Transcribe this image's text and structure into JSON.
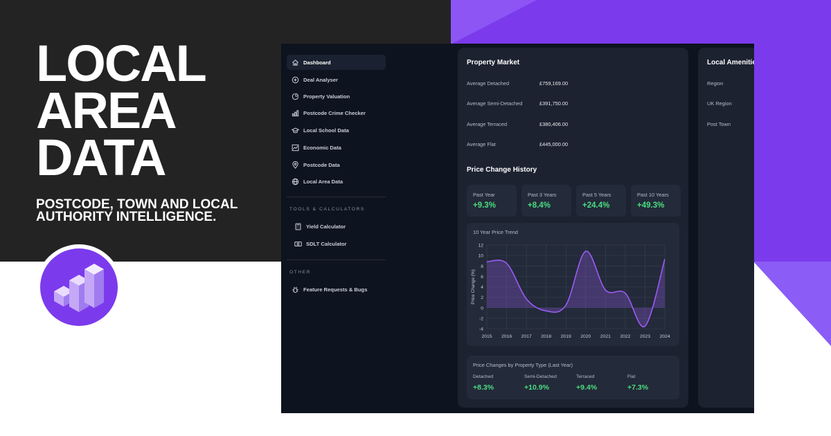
{
  "hero": {
    "title_lines": [
      "LOCAL",
      "AREA",
      "DATA"
    ],
    "subtitle_line1": "POSTCODE, TOWN AND LOCAL",
    "subtitle_line2": "AUTHORITY INTELLIGENCE."
  },
  "colors": {
    "accent": "#7c3aed",
    "positive": "#4ade80",
    "app_bg": "#0e1320",
    "card_bg": "#1c2230"
  },
  "sidebar": {
    "items": [
      {
        "label": "Dashboard",
        "icon": "home-icon",
        "active": true
      },
      {
        "label": "Deal Analyser",
        "icon": "plus-circle-icon"
      },
      {
        "label": "Property Valuation",
        "icon": "pie-chart-icon"
      },
      {
        "label": "Postcode Crime Checker",
        "icon": "bar-chart-icon"
      },
      {
        "label": "Local School Data",
        "icon": "graduation-cap-icon"
      },
      {
        "label": "Economic Data",
        "icon": "line-chart-icon"
      },
      {
        "label": "Postcode Data",
        "icon": "map-pin-icon"
      },
      {
        "label": "Local Area Data",
        "icon": "globe-icon"
      }
    ],
    "tools_heading": "TOOLS & CALCULATORS",
    "tools": [
      {
        "label": "Yield Calculator",
        "icon": "calculator-icon"
      },
      {
        "label": "SDLT Calculator",
        "icon": "banknote-icon"
      }
    ],
    "other_heading": "OTHER",
    "other": [
      {
        "label": "Feature Requests & Bugs",
        "icon": "bug-icon"
      }
    ]
  },
  "property_market": {
    "title": "Property Market",
    "rows": [
      {
        "label": "Average Detached",
        "value": "£759,169.00"
      },
      {
        "label": "Average Semi-Detached",
        "value": "£391,750.00"
      },
      {
        "label": "Average Terraced",
        "value": "£380,406.00"
      },
      {
        "label": "Average Flat",
        "value": "£445,000.00"
      }
    ]
  },
  "price_change_history": {
    "title": "Price Change History",
    "stats": [
      {
        "label": "Past Year",
        "value": "+9.3%"
      },
      {
        "label": "Past 3 Years",
        "value": "+8.4%"
      },
      {
        "label": "Past 5 Years",
        "value": "+24.4%"
      },
      {
        "label": "Past 10 Years",
        "value": "+49.3%"
      }
    ]
  },
  "chart_data": {
    "type": "area",
    "title": "10 Year Price Trend",
    "xlabel": "",
    "ylabel": "Price Change (%)",
    "x": [
      2015,
      2016,
      2017,
      2018,
      2019,
      2020,
      2021,
      2022,
      2023,
      2024
    ],
    "series": [
      {
        "values": [
          8.8,
          8.5,
          1.7,
          -0.6,
          0.5,
          10.8,
          3.4,
          2.8,
          -3.5,
          9.3
        ]
      }
    ],
    "ylim": [
      -4,
      12
    ],
    "yticks": [
      -4,
      -2,
      0,
      2,
      4,
      6,
      8,
      10,
      12
    ],
    "grid": true,
    "line_color": "#9b5cf6"
  },
  "property_type_changes": {
    "title": "Price Changes by Property Type (Last Year)",
    "items": [
      {
        "label": "Detached",
        "value": "+8.3%"
      },
      {
        "label": "Semi-Detached",
        "value": "+10.9%"
      },
      {
        "label": "Terraced",
        "value": "+9.4%"
      },
      {
        "label": "Flat",
        "value": "+7.3%"
      }
    ]
  },
  "local_amenities": {
    "title": "Local Amenities",
    "rows": [
      {
        "label": "Region"
      },
      {
        "label": "UK Region"
      },
      {
        "label": "Post Town"
      }
    ]
  }
}
